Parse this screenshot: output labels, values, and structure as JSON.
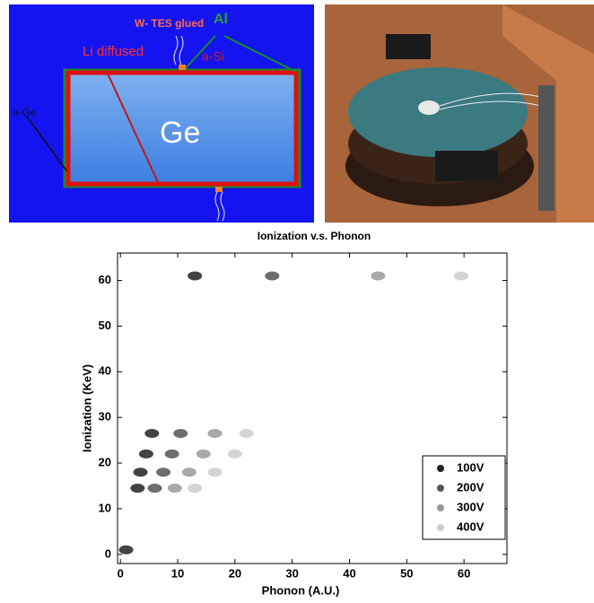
{
  "diagram": {
    "labels": {
      "tes": "W- TES glued",
      "al": "Al",
      "li": "Li diffused",
      "asi": "a-Si",
      "age": "a-Ge",
      "ge": "Ge"
    }
  },
  "chart_data": {
    "type": "scatter",
    "title": "Ionization v.s. Phonon",
    "x_label": "Phonon (A.U.)",
    "y_label": "Ionization (KeV)",
    "xlim": [
      -0.5,
      67.5
    ],
    "ylim": [
      -2,
      66
    ],
    "xticks": [
      0,
      10,
      20,
      30,
      40,
      50,
      60
    ],
    "yticks": [
      0,
      10,
      20,
      30,
      40,
      50,
      60
    ],
    "legend_position": "lower right",
    "series": [
      {
        "name": "100V",
        "color": "#222222",
        "x": [
          13,
          5.5,
          4.5,
          3.5,
          3,
          1
        ],
        "y": [
          61,
          26.5,
          22,
          18,
          14.5,
          1
        ]
      },
      {
        "name": "200V",
        "color": "#555555",
        "x": [
          26.5,
          10.5,
          9,
          7.5,
          6
        ],
        "y": [
          61,
          26.5,
          22,
          18,
          14.5
        ]
      },
      {
        "name": "300V",
        "color": "#999999",
        "x": [
          45,
          16.5,
          14.5,
          12,
          9.5
        ],
        "y": [
          61,
          26.5,
          22,
          18,
          14.5
        ]
      },
      {
        "name": "400V",
        "color": "#cccccc",
        "x": [
          59.5,
          22,
          20,
          16.5,
          13
        ],
        "y": [
          61,
          26.5,
          22,
          18,
          14.5
        ]
      }
    ]
  }
}
